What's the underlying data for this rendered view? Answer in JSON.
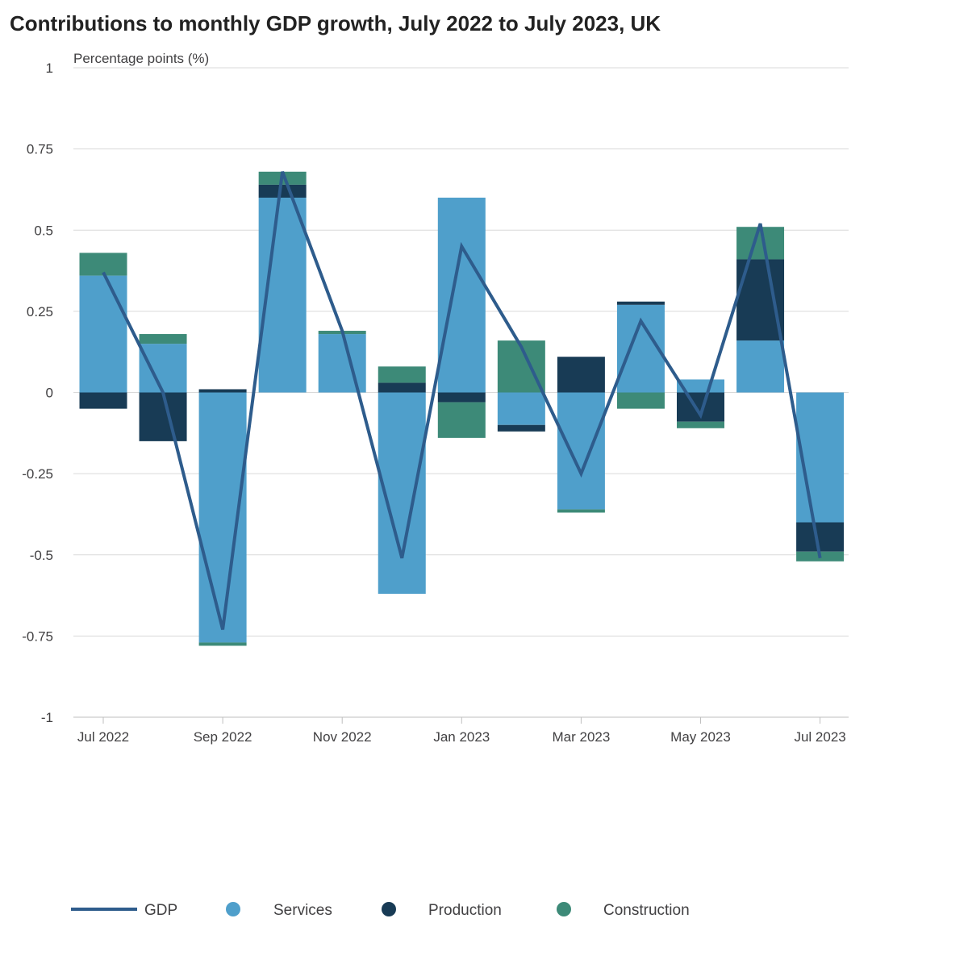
{
  "title": "Contributions to monthly GDP growth, July 2022 to July 2023, UK",
  "colors": {
    "gdp": "#2e5c8c",
    "services": "#4f9fcb",
    "production": "#183b55",
    "construction": "#3d8a78",
    "grid": "#d9d9d9",
    "axis": "#bfbfbf"
  },
  "chart_data": {
    "type": "bar",
    "stacked": true,
    "title": "Contributions to monthly GDP growth, July 2022 to July 2023, UK",
    "ylabel": "Percentage points (%)",
    "xlabel": "",
    "ylim": [
      -1,
      1
    ],
    "y_ticks": [
      1,
      0.75,
      0.5,
      0.25,
      0,
      -0.25,
      -0.5,
      -0.75,
      -1
    ],
    "y_tick_labels": [
      "1",
      "0.75",
      "0.5",
      "0.25",
      "0",
      "-0.25",
      "-0.5",
      "-0.75",
      "-1"
    ],
    "categories": [
      "Jul 2022",
      "Aug 2022",
      "Sep 2022",
      "Oct 2022",
      "Nov 2022",
      "Dec 2022",
      "Jan 2023",
      "Feb 2023",
      "Mar 2023",
      "Apr 2023",
      "May 2023",
      "Jun 2023",
      "Jul 2023"
    ],
    "x_tick_labels": [
      "Jul 2022",
      "",
      "Sep 2022",
      "",
      "Nov 2022",
      "",
      "Jan 2023",
      "",
      "Mar 2023",
      "",
      "May 2023",
      "",
      "Jul 2023"
    ],
    "grid": true,
    "legend_position": "bottom",
    "series": [
      {
        "name": "Services",
        "kind": "bar",
        "values": [
          0.36,
          0.15,
          -0.77,
          0.6,
          0.18,
          -0.62,
          0.6,
          -0.1,
          -0.36,
          0.27,
          0.04,
          0.16,
          -0.4
        ]
      },
      {
        "name": "Production",
        "kind": "bar",
        "values": [
          -0.05,
          -0.15,
          0.01,
          0.04,
          0.0,
          0.03,
          -0.03,
          -0.02,
          0.11,
          0.01,
          -0.09,
          0.25,
          -0.09
        ]
      },
      {
        "name": "Construction",
        "kind": "bar",
        "values": [
          0.07,
          0.03,
          -0.01,
          0.04,
          0.01,
          0.05,
          -0.11,
          0.16,
          -0.01,
          -0.05,
          -0.02,
          0.1,
          -0.03
        ]
      },
      {
        "name": "GDP",
        "kind": "line",
        "values": [
          0.37,
          0.0,
          -0.73,
          0.68,
          0.19,
          -0.51,
          0.45,
          0.14,
          -0.25,
          0.22,
          -0.07,
          0.52,
          -0.51
        ]
      }
    ]
  },
  "legend": [
    {
      "label": "GDP",
      "type": "line"
    },
    {
      "label": "Services",
      "type": "dot"
    },
    {
      "label": "Production",
      "type": "dot"
    },
    {
      "label": "Construction",
      "type": "dot"
    }
  ]
}
